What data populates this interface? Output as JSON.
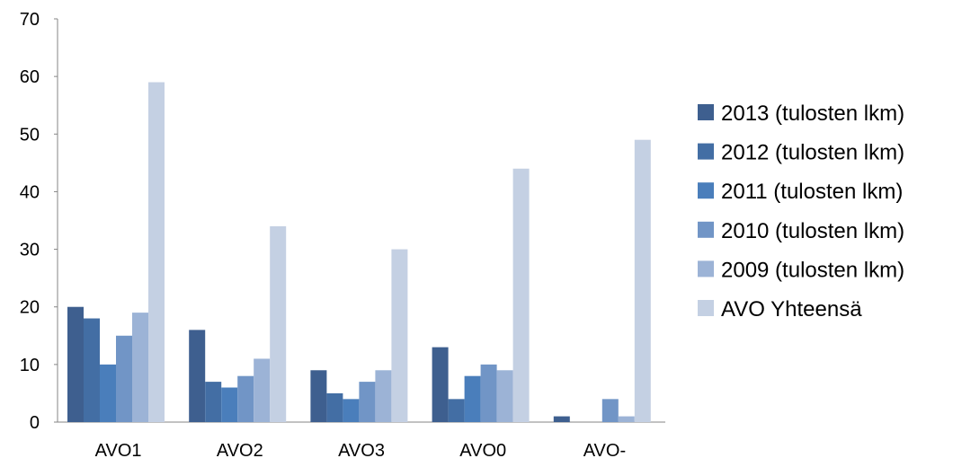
{
  "chart_data": {
    "type": "bar",
    "categories": [
      "AVO1",
      "AVO2",
      "AVO3",
      "AVO0",
      "AVO-"
    ],
    "series": [
      {
        "name": "2013 (tulosten lkm)",
        "values": [
          20,
          16,
          9,
          13,
          1
        ],
        "color": "#3E5F8F"
      },
      {
        "name": "2012 (tulosten lkm)",
        "values": [
          18,
          7,
          5,
          4,
          0
        ],
        "color": "#436EA4"
      },
      {
        "name": "2011 (tulosten lkm)",
        "values": [
          10,
          6,
          4,
          8,
          0
        ],
        "color": "#4A7EBB"
      },
      {
        "name": "2010 (tulosten lkm)",
        "values": [
          15,
          8,
          7,
          10,
          4
        ],
        "color": "#7195C6"
      },
      {
        "name": "2009 (tulosten lkm)",
        "values": [
          19,
          11,
          9,
          9,
          1
        ],
        "color": "#9CB3D6"
      },
      {
        "name": "AVO Yhteensä",
        "values": [
          59,
          34,
          30,
          44,
          49
        ],
        "color": "#C4D0E3"
      }
    ],
    "yticks": [
      "0",
      "10",
      "20",
      "30",
      "40",
      "50",
      "60",
      "70"
    ],
    "ylim": [
      0,
      70
    ],
    "grid": false,
    "legend": "right",
    "title": "",
    "xlabel": "",
    "ylabel": ""
  }
}
